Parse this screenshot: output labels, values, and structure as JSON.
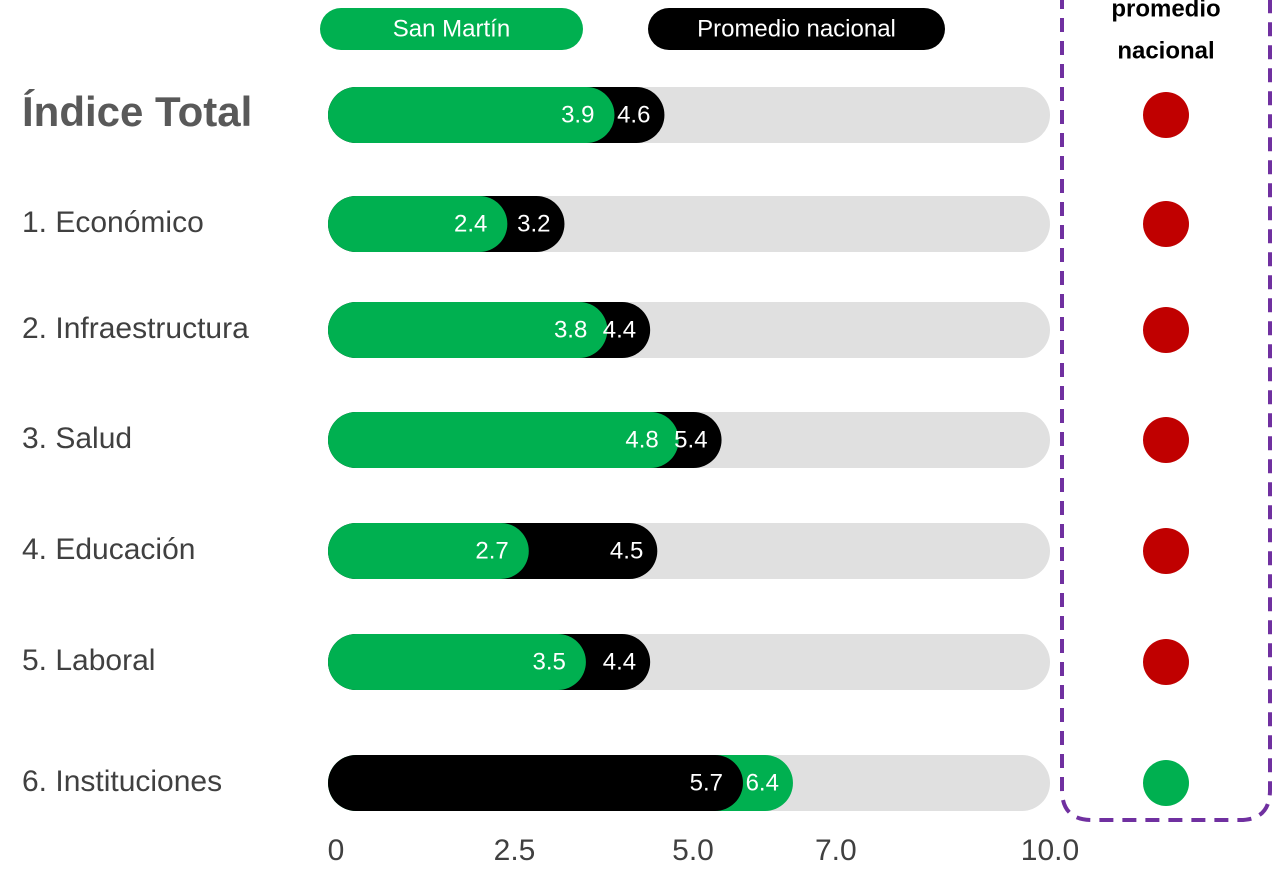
{
  "chart_data": {
    "type": "bar",
    "categories": [
      "Índice Total",
      "1. Económico",
      "2. Infraestructura",
      "3. Salud",
      "4. Educación",
      "5. Laboral",
      "6. Instituciones"
    ],
    "series": [
      {
        "name": "San Martín",
        "color": "#00b050",
        "values": [
          3.9,
          2.4,
          3.8,
          4.8,
          2.7,
          3.5,
          6.4
        ]
      },
      {
        "name": "Promedio nacional",
        "color": "#000000",
        "values": [
          4.6,
          3.2,
          4.4,
          5.4,
          4.5,
          4.4,
          5.7
        ]
      }
    ],
    "xlim": [
      0,
      10
    ],
    "xticks": [
      0,
      2.5,
      {
        "value": 5,
        "label": "5.0"
      },
      {
        "value": 7,
        "label": "7.0"
      },
      {
        "value": 10,
        "label": "10.0"
      }
    ],
    "indicator_header": [
      "promedio",
      "nacional"
    ],
    "indicator_colors": [
      "#c00000",
      "#c00000",
      "#c00000",
      "#c00000",
      "#c00000",
      "#c00000",
      "#00b050"
    ]
  }
}
